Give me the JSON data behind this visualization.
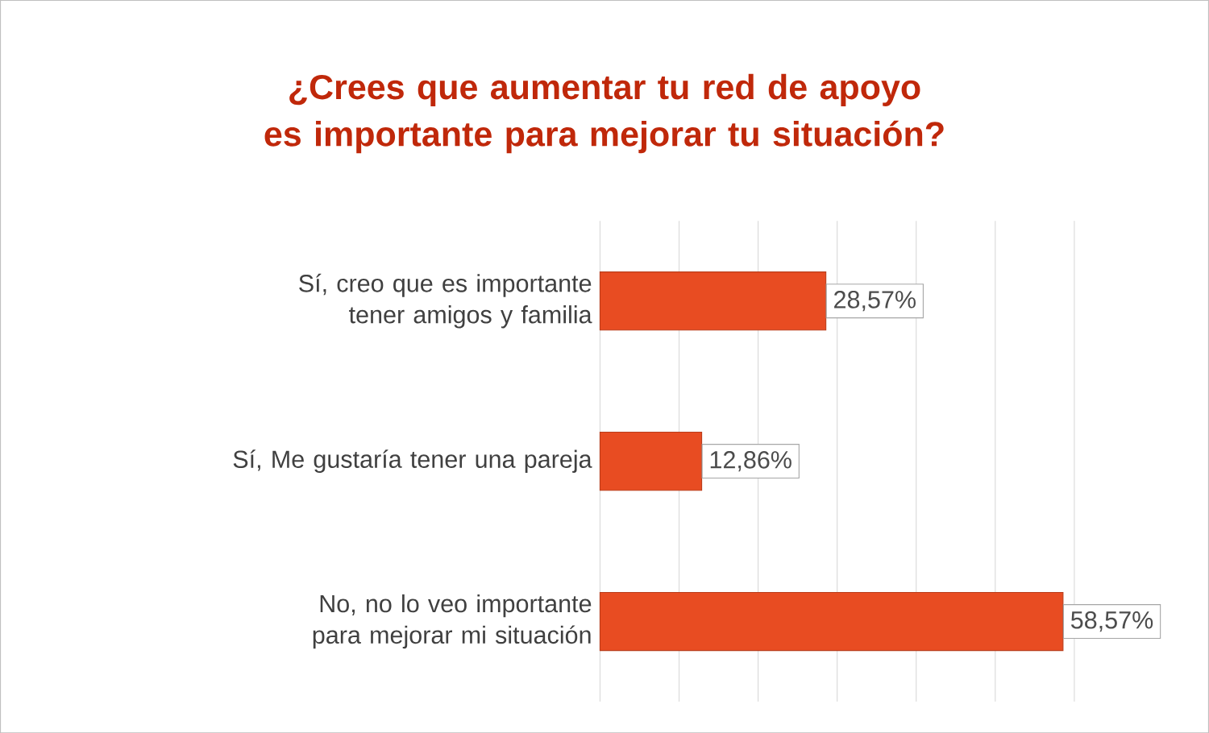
{
  "chart_data": {
    "type": "bar",
    "orientation": "horizontal",
    "title": "¿Crees que aumentar tu red de apoyo es importante para mejorar tu situación?",
    "categories": [
      "Sí, creo que es importante tener amigos y familia",
      "Sí, Me gustaría tener una pareja",
      "No, no lo veo importante para mejorar mi situación"
    ],
    "values": [
      28.57,
      12.86,
      58.57
    ],
    "value_labels": [
      "28,57%",
      "12,86%",
      "58,57%"
    ],
    "color": "#e84c22",
    "xlim": [
      0,
      60
    ],
    "xticks": [
      0,
      10,
      20,
      30,
      40,
      50,
      60
    ],
    "tick_labels": "y",
    "grid": "x"
  }
}
